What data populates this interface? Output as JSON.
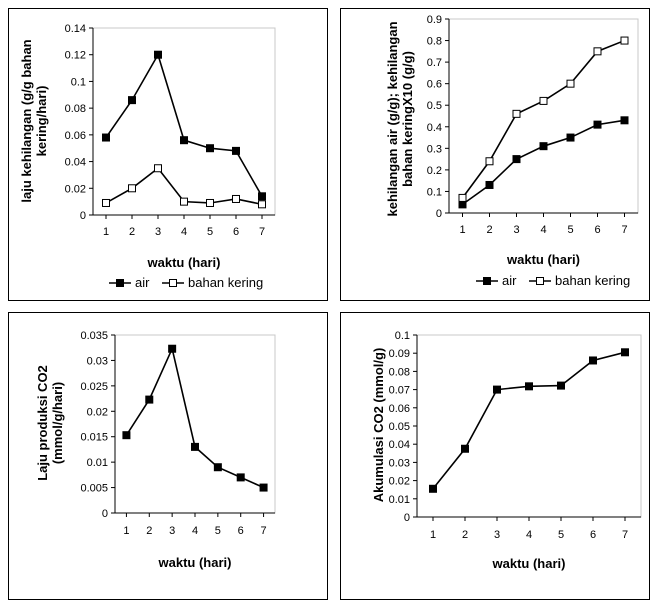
{
  "chart_data": [
    {
      "id": "p1",
      "type": "line",
      "categories": [
        "1",
        "2",
        "3",
        "4",
        "5",
        "6",
        "7"
      ],
      "series": [
        {
          "name": "air",
          "marker": "filled",
          "values": [
            0.058,
            0.086,
            0.12,
            0.056,
            0.05,
            0.048,
            0.014
          ]
        },
        {
          "name": "bahan kering",
          "marker": "open",
          "values": [
            0.009,
            0.02,
            0.035,
            0.01,
            0.009,
            0.012,
            0.008
          ]
        }
      ],
      "yticks": [
        "0",
        "0.02",
        "0.04",
        "0.06",
        "0.08",
        "0.1",
        "0.12",
        "0.14"
      ],
      "ylim": [
        0,
        0.14
      ],
      "xlabel": "waktu (hari)",
      "ylabel": [
        "laju kehilangan (g/g bahan",
        "kering/hari)"
      ],
      "legend": {
        "items": [
          "air",
          "bahan kering"
        ],
        "placement": "bottom"
      },
      "grid": false
    },
    {
      "id": "p2",
      "type": "line",
      "categories": [
        "1",
        "2",
        "3",
        "4",
        "5",
        "6",
        "7"
      ],
      "series": [
        {
          "name": "air",
          "marker": "filled",
          "values": [
            0.04,
            0.13,
            0.25,
            0.31,
            0.35,
            0.41,
            0.43
          ]
        },
        {
          "name": "bahan kering",
          "marker": "open",
          "values": [
            0.07,
            0.24,
            0.46,
            0.52,
            0.6,
            0.75,
            0.8
          ]
        }
      ],
      "yticks": [
        "0",
        "0.1",
        "0.2",
        "0.3",
        "0.4",
        "0.5",
        "0.6",
        "0.7",
        "0.8",
        "0.9"
      ],
      "ylim": [
        0,
        0.9
      ],
      "xlabel": "waktu (hari)",
      "ylabel": [
        "kehilangan air (g/g); kehilangan",
        "bahan keringX10 (g/g)"
      ],
      "legend": {
        "items": [
          "air",
          "bahan kering"
        ],
        "placement": "bottom"
      },
      "grid": false
    },
    {
      "id": "p3",
      "type": "line",
      "categories": [
        "1",
        "2",
        "3",
        "4",
        "5",
        "6",
        "7"
      ],
      "series": [
        {
          "marker": "filled",
          "values": [
            0.0153,
            0.0223,
            0.0323,
            0.013,
            0.009,
            0.007,
            0.005
          ]
        }
      ],
      "yticks": [
        "0",
        "0.005",
        "0.01",
        "0.015",
        "0.02",
        "0.025",
        "0.03",
        "0.035"
      ],
      "ylim": [
        0,
        0.035
      ],
      "xlabel": "waktu (hari)",
      "ylabel": [
        "Laju produksi CO2",
        "(mmol/g/hari)"
      ],
      "grid": false
    },
    {
      "id": "p4",
      "type": "line",
      "categories": [
        "1",
        "2",
        "3",
        "4",
        "5",
        "6",
        "7"
      ],
      "series": [
        {
          "marker": "filled",
          "values": [
            0.0155,
            0.0375,
            0.07,
            0.0718,
            0.0722,
            0.086,
            0.0905
          ]
        }
      ],
      "yticks": [
        "0",
        "0.01",
        "0.02",
        "0.03",
        "0.04",
        "0.05",
        "0.06",
        "0.07",
        "0.08",
        "0.09",
        "0.1"
      ],
      "ylim": [
        0,
        0.1
      ],
      "xlabel": "waktu (hari)",
      "ylabel": [
        "Akumulasi CO2 (mmol/g)"
      ],
      "grid": false
    }
  ]
}
